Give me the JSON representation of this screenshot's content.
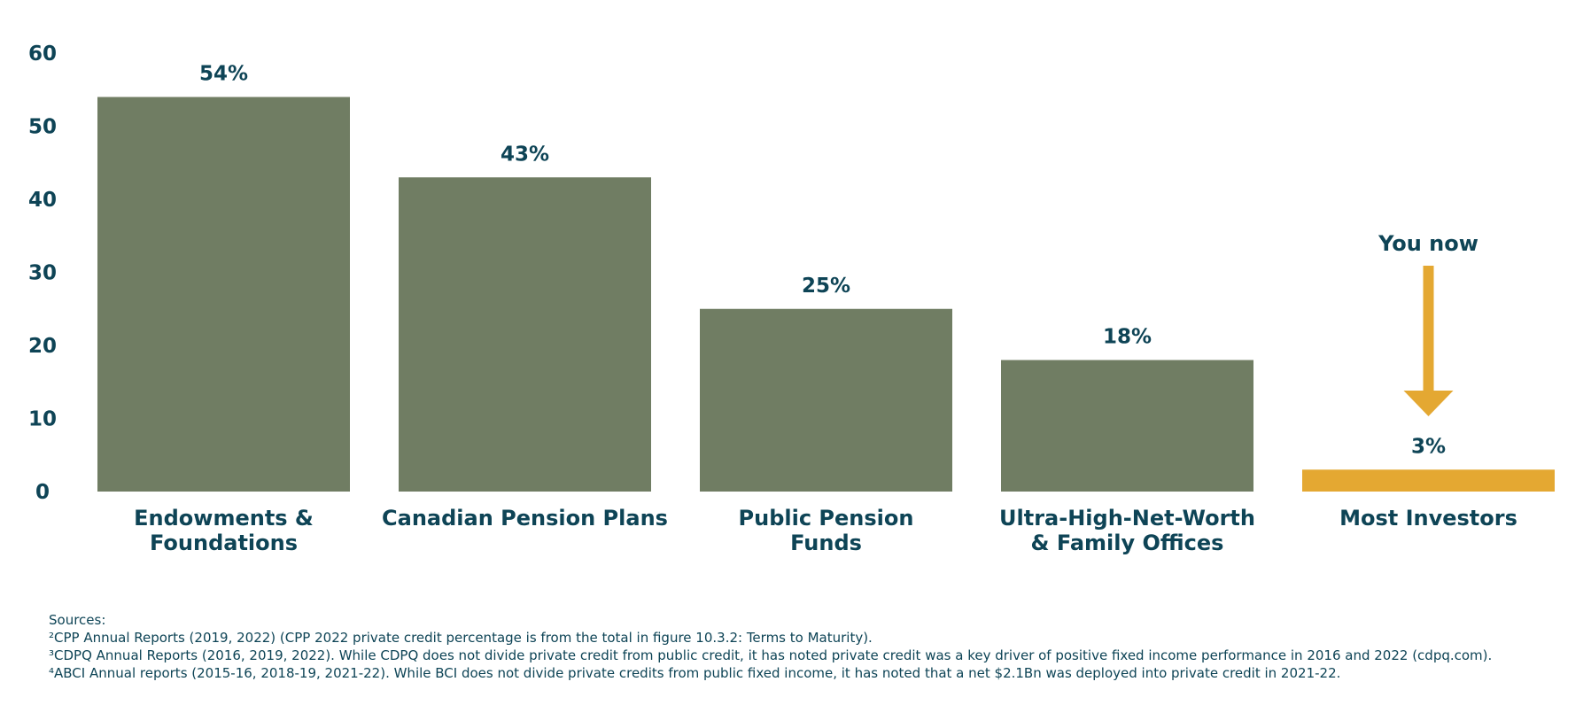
{
  "chart_data": {
    "type": "bar",
    "categories": [
      "Endowments & Foundations",
      "Canadian Pension Plans",
      "Public Pension Funds",
      "Ultra-High-Net-Worth & Family Offices",
      "Most Investors"
    ],
    "category_label_lines": [
      [
        "Endowments &",
        "Foundations"
      ],
      [
        "Canadian Pension Plans"
      ],
      [
        "Public Pension",
        "Funds"
      ],
      [
        "Ultra-High-Net-Worth",
        "& Family Offices"
      ],
      [
        "Most Investors"
      ]
    ],
    "values": [
      54,
      43,
      25,
      18,
      3
    ],
    "data_labels": [
      "54%",
      "43%",
      "25%",
      "18%",
      "3%"
    ],
    "yticks": [
      0,
      10,
      20,
      30,
      40,
      50,
      60
    ],
    "ylim": [
      0,
      60
    ],
    "grid": false,
    "title": "",
    "xlabel": "",
    "ylabel": "",
    "colors": {
      "bar": "#707d63",
      "highlight": "#e4a832",
      "text": "#0e4456"
    },
    "highlight_index": 4,
    "annotation": {
      "text": "You now",
      "target_category": "Most Investors",
      "icon": "down-arrow-icon"
    }
  },
  "sources": {
    "heading": "Sources:",
    "notes": [
      "²CPP Annual Reports (2019, 2022) (CPP 2022 private credit percentage is from the total in figure 10.3.2: Terms to Maturity).",
      "³CDPQ Annual Reports (2016, 2019, 2022). While CDPQ does not divide private credit from public credit, it has noted private credit was a key driver of positive fixed income performance in 2016 and 2022 (cdpq.com).",
      "⁴ABCI Annual reports (2015-16, 2018-19, 2021-22). While BCI does not divide private credits from public fixed income, it has noted that a net $2.1Bn was deployed into private credit in 2021-22."
    ]
  }
}
